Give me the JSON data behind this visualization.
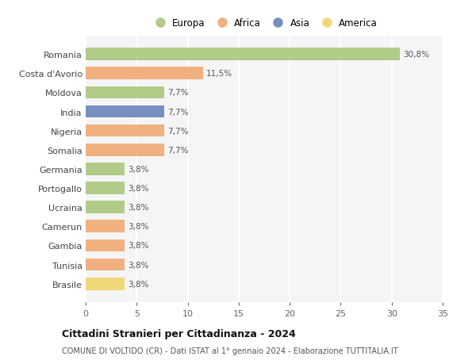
{
  "categories": [
    "Brasile",
    "Tunisia",
    "Gambia",
    "Camerun",
    "Ucraina",
    "Portogallo",
    "Germania",
    "Somalia",
    "Nigeria",
    "India",
    "Moldova",
    "Costa d'Avorio",
    "Romania"
  ],
  "values": [
    3.8,
    3.8,
    3.8,
    3.8,
    3.8,
    3.8,
    3.8,
    7.7,
    7.7,
    7.7,
    7.7,
    11.5,
    30.8
  ],
  "labels": [
    "3,8%",
    "3,8%",
    "3,8%",
    "3,8%",
    "3,8%",
    "3,8%",
    "3,8%",
    "7,7%",
    "7,7%",
    "7,7%",
    "7,7%",
    "11,5%",
    "30,8%"
  ],
  "colors": [
    "#f0d878",
    "#f0b080",
    "#f0b080",
    "#f0b080",
    "#b0cc88",
    "#b0cc88",
    "#b0cc88",
    "#f0b080",
    "#f0b080",
    "#7890c0",
    "#b0cc88",
    "#f0b080",
    "#b0cc88"
  ],
  "legend_labels": [
    "Europa",
    "Africa",
    "Asia",
    "America"
  ],
  "legend_colors": [
    "#b0cc88",
    "#f0b080",
    "#7890c0",
    "#f0d878"
  ],
  "title": "Cittadini Stranieri per Cittadinanza - 2024",
  "subtitle": "COMUNE DI VOLTIDO (CR) - Dati ISTAT al 1° gennaio 2024 - Elaborazione TUTTITALIA.IT",
  "xlim": [
    0,
    35
  ],
  "xticks": [
    0,
    5,
    10,
    15,
    20,
    25,
    30,
    35
  ],
  "bg_color": "#ffffff",
  "plot_bg_color": "#f5f5f5",
  "grid_color": "#ffffff",
  "bar_height": 0.65
}
